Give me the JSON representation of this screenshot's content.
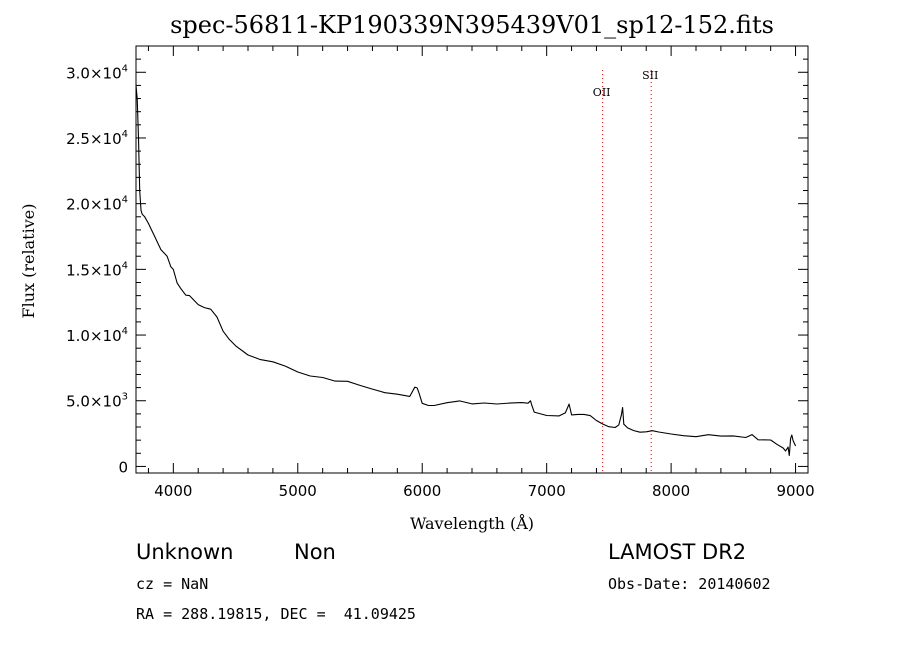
{
  "chart_data": {
    "type": "line",
    "title": "spec-56811-KP190339N395439V01_sp12-152.fits",
    "xlabel": "Wavelength (Å)",
    "ylabel": "Flux (relative)",
    "xlim": [
      3700,
      9100
    ],
    "ylim": [
      -500,
      32000
    ],
    "x_ticks": [
      {
        "value": 4000,
        "label": "4000"
      },
      {
        "value": 5000,
        "label": "5000"
      },
      {
        "value": 6000,
        "label": "6000"
      },
      {
        "value": 7000,
        "label": "7000"
      },
      {
        "value": 8000,
        "label": "8000"
      },
      {
        "value": 9000,
        "label": "9000"
      }
    ],
    "y_ticks": [
      {
        "value": 0,
        "mantissa": "0",
        "exp": ""
      },
      {
        "value": 5000,
        "mantissa": "5.0×10",
        "exp": "3"
      },
      {
        "value": 10000,
        "mantissa": "1.0×10",
        "exp": "4"
      },
      {
        "value": 15000,
        "mantissa": "1.5×10",
        "exp": "4"
      },
      {
        "value": 20000,
        "mantissa": "2.0×10",
        "exp": "4"
      },
      {
        "value": 25000,
        "mantissa": "2.5×10",
        "exp": "4"
      },
      {
        "value": 30000,
        "mantissa": "3.0×10",
        "exp": "4"
      }
    ],
    "grid": false,
    "series": [
      {
        "color": "#000000",
        "x": [
          3700,
          3710,
          3720,
          3730,
          3740,
          3750,
          3770,
          3800,
          3850,
          3900,
          3950,
          3980,
          4000,
          4030,
          4060,
          4100,
          4130,
          4200,
          4250,
          4300,
          4350,
          4400,
          4450,
          4500,
          4600,
          4700,
          4800,
          4900,
          5000,
          5100,
          5200,
          5300,
          5400,
          5500,
          5600,
          5700,
          5800,
          5900,
          5940,
          5960,
          5975,
          6000,
          6050,
          6100,
          6200,
          6300,
          6400,
          6500,
          6600,
          6700,
          6800,
          6850,
          6870,
          6880,
          6900,
          7000,
          7100,
          7150,
          7180,
          7200,
          7250,
          7300,
          7350,
          7400,
          7450,
          7500,
          7550,
          7580,
          7600,
          7610,
          7620,
          7650,
          7700,
          7750,
          7800,
          7850,
          7900,
          8000,
          8100,
          8200,
          8300,
          8400,
          8500,
          8600,
          8650,
          8700,
          8800,
          8850,
          8900,
          8920,
          8940,
          8950,
          8960,
          8970,
          8980,
          9000
        ],
        "y": [
          29000,
          28000,
          25000,
          21000,
          19500,
          19200,
          19000,
          18500,
          17500,
          16500,
          16000,
          15200,
          15000,
          14000,
          13500,
          13000,
          13000,
          12300,
          12000,
          11800,
          11200,
          10200,
          9700,
          9300,
          8600,
          8200,
          8000,
          7700,
          7300,
          7000,
          6800,
          6400,
          6300,
          6000,
          5800,
          5600,
          5500,
          5300,
          6000,
          6000,
          5700,
          5000,
          4800,
          4700,
          4800,
          4900,
          4700,
          4800,
          4700,
          4700,
          4700,
          4700,
          5000,
          4800,
          4300,
          4000,
          3900,
          4100,
          4800,
          4000,
          4000,
          3900,
          3700,
          3300,
          3100,
          3000,
          3000,
          3200,
          3900,
          4500,
          3300,
          3100,
          2900,
          2700,
          2600,
          2600,
          2500,
          2400,
          2300,
          2200,
          2300,
          2200,
          2300,
          2300,
          2600,
          2200,
          2100,
          1700,
          1400,
          1200,
          1500,
          800,
          2000,
          2200,
          1800,
          1500
        ]
      }
    ],
    "vlines": [
      {
        "label": "OII",
        "x": 7450,
        "color": "#cc0000"
      },
      {
        "label": "SII",
        "x": 7840,
        "color": "#cc0000"
      }
    ]
  },
  "info": {
    "class_label": "Unknown",
    "subclass_label": "Non",
    "survey": "LAMOST DR2",
    "cz_line": "cz = NaN",
    "obs_date_line": "Obs-Date: 20140602",
    "radec_line": "RA = 288.19815, DEC =  41.09425"
  }
}
